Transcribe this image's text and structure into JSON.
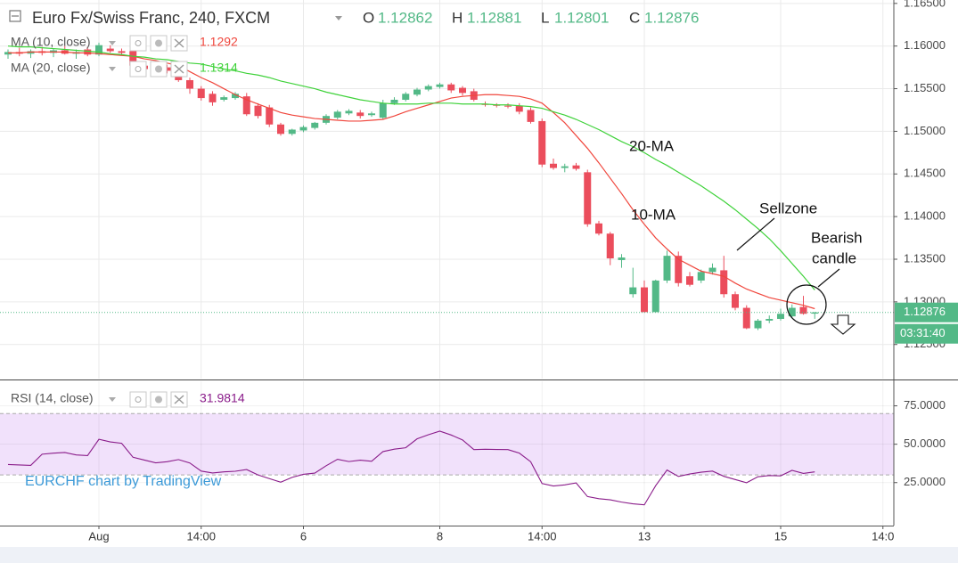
{
  "chart_data": [
    {
      "type": "candlestick",
      "title": "Euro Fx/Swiss Franc, 240, FXCM",
      "ohlc_legend": [
        {
          "label": "O",
          "value": 1.12862
        },
        {
          "label": "H",
          "value": 1.12881
        },
        {
          "label": "L",
          "value": 1.12801
        },
        {
          "label": "C",
          "value": 1.12876
        }
      ],
      "countdown": "03:31:40",
      "watermark": "EURCHF chart by TradingView",
      "annotations": [
        "20-MA",
        "10-MA",
        "Sellzone",
        "Bearish",
        "candle"
      ],
      "up_color": "#53b987",
      "down_color": "#eb4d5c",
      "grid": true,
      "ylim": [
        1.121,
        1.1654
      ],
      "yticks": [
        {
          "value": 1.165,
          "label": "1.16500"
        },
        {
          "value": 1.16,
          "label": "1.16000"
        },
        {
          "value": 1.155,
          "label": "1.15500"
        },
        {
          "value": 1.15,
          "label": "1.15000"
        },
        {
          "value": 1.145,
          "label": "1.14500"
        },
        {
          "value": 1.14,
          "label": "1.14000"
        },
        {
          "value": 1.135,
          "label": "1.13500"
        },
        {
          "value": 1.13,
          "label": "1.13000"
        },
        {
          "value": 1.125,
          "label": "1.12500"
        }
      ],
      "categories": [
        null,
        null,
        null,
        null,
        null,
        null,
        null,
        null,
        "Aug",
        null,
        null,
        null,
        null,
        null,
        null,
        null,
        null,
        "14:00",
        null,
        null,
        null,
        null,
        null,
        null,
        null,
        null,
        "6",
        null,
        null,
        null,
        null,
        null,
        null,
        null,
        null,
        null,
        null,
        null,
        "8",
        null,
        null,
        null,
        null,
        null,
        null,
        null,
        null,
        "14:00",
        null,
        null,
        null,
        null,
        null,
        null,
        null,
        null,
        "13",
        null,
        null,
        null,
        null,
        null,
        null,
        null,
        null,
        null,
        null,
        null,
        "15",
        null,
        null,
        null,
        null,
        null,
        null,
        null,
        null,
        "14:0"
      ],
      "open": [
        1.159,
        1.1593,
        1.1591,
        1.1594,
        1.1592,
        1.1595,
        1.1591,
        1.1596,
        1.159,
        1.1597,
        1.1594,
        1.1594,
        1.1577,
        1.1573,
        1.1575,
        1.157,
        1.156,
        1.155,
        1.1544,
        1.1537,
        1.1539,
        1.1541,
        1.153,
        1.1528,
        1.1508,
        1.1497,
        1.1501,
        1.1504,
        1.151,
        1.1516,
        1.1521,
        1.1522,
        1.1519,
        1.1516,
        1.1533,
        1.1537,
        1.1543,
        1.1549,
        1.1552,
        1.1555,
        1.1551,
        1.1547,
        1.1532,
        1.1531,
        1.153,
        1.153,
        1.1525,
        1.1512,
        1.1462,
        1.1457,
        1.146,
        1.1452,
        1.1392,
        1.138,
        1.1349,
        1.1309,
        1.1317,
        1.1288,
        1.1325,
        1.1354,
        1.133,
        1.1325,
        1.1335,
        1.1337,
        1.1309,
        1.1293,
        1.1269,
        1.1278,
        1.128,
        1.1283,
        1.1294,
        1.12862,
        null,
        null,
        null,
        null,
        null,
        null
      ],
      "high": [
        1.1596,
        1.1598,
        1.1596,
        1.1599,
        1.1597,
        1.16,
        1.1596,
        1.1599,
        1.1604,
        1.1601,
        1.1597,
        1.1597,
        1.158,
        1.1577,
        1.1578,
        1.1573,
        1.1563,
        1.1553,
        1.1547,
        1.1542,
        1.1546,
        1.1545,
        1.1533,
        1.1531,
        1.151,
        1.1503,
        1.1507,
        1.1511,
        1.152,
        1.1525,
        1.1526,
        1.1525,
        1.1523,
        1.1537,
        1.154,
        1.1546,
        1.1551,
        1.1555,
        1.1557,
        1.1557,
        1.1553,
        1.155,
        1.1535,
        1.1533,
        1.1533,
        1.1533,
        1.1528,
        1.1515,
        1.1468,
        1.1462,
        1.1463,
        1.1455,
        1.1395,
        1.1382,
        1.1356,
        1.134,
        1.1325,
        1.1326,
        1.136,
        1.1359,
        1.1335,
        1.1338,
        1.1345,
        1.1354,
        1.1312,
        1.1296,
        1.128,
        1.1284,
        1.1292,
        1.1297,
        1.1307,
        1.12881,
        null,
        null,
        null,
        null,
        null,
        null
      ],
      "low": [
        1.1585,
        1.1588,
        1.1586,
        1.1589,
        1.1587,
        1.159,
        1.1585,
        1.1588,
        1.1588,
        1.1592,
        1.159,
        1.1575,
        1.157,
        1.1569,
        1.1568,
        1.1558,
        1.1544,
        1.1536,
        1.153,
        1.1535,
        1.1537,
        1.1518,
        1.1515,
        1.1505,
        1.1495,
        1.1495,
        1.1499,
        1.1502,
        1.1508,
        1.1514,
        1.1519,
        1.1515,
        1.1517,
        1.1514,
        1.1531,
        1.1535,
        1.1541,
        1.1547,
        1.155,
        1.1545,
        1.1542,
        1.1535,
        1.1529,
        1.1528,
        1.1527,
        1.152,
        1.1509,
        1.1458,
        1.1455,
        1.1452,
        1.1454,
        1.1388,
        1.1378,
        1.1343,
        1.134,
        1.1305,
        1.1288,
        1.1288,
        1.1322,
        1.1318,
        1.1318,
        1.1322,
        1.1332,
        1.1305,
        1.129,
        1.1268,
        1.1267,
        1.1275,
        1.1278,
        1.1281,
        1.1285,
        1.12801,
        null,
        null,
        null,
        null,
        null,
        null
      ],
      "close": [
        1.1593,
        1.1591,
        1.1594,
        1.1592,
        1.1595,
        1.1591,
        1.1593,
        1.159,
        1.1601,
        1.1594,
        1.1592,
        1.1577,
        1.1573,
        1.1575,
        1.1571,
        1.156,
        1.155,
        1.1539,
        1.1534,
        1.154,
        1.1544,
        1.152,
        1.1518,
        1.1508,
        1.1497,
        1.1502,
        1.1505,
        1.151,
        1.1518,
        1.1523,
        1.1524,
        1.1518,
        1.1521,
        1.1533,
        1.1537,
        1.1544,
        1.1549,
        1.1553,
        1.1555,
        1.1548,
        1.1545,
        1.1537,
        1.1531,
        1.153,
        1.1529,
        1.1523,
        1.1511,
        1.1461,
        1.1457,
        1.1459,
        1.1456,
        1.1391,
        1.138,
        1.1351,
        1.1352,
        1.1317,
        1.1288,
        1.1325,
        1.1354,
        1.1322,
        1.132,
        1.1335,
        1.134,
        1.1309,
        1.1293,
        1.1269,
        1.1278,
        1.128,
        1.1286,
        1.1293,
        1.1286,
        1.12876,
        null,
        null,
        null,
        null,
        null,
        null
      ],
      "series": [
        {
          "name": "MA (10, close)",
          "color": "#f0463c",
          "last_value": 1.1292,
          "values": [
            1.1592,
            1.1592,
            1.1593,
            1.1593,
            1.1593,
            1.1593,
            1.1592,
            1.1592,
            1.1591,
            1.159,
            1.1589,
            1.1588,
            1.1585,
            1.1583,
            1.158,
            1.1577,
            1.157,
            1.1563,
            1.1557,
            1.155,
            1.1543,
            1.1537,
            1.1532,
            1.1527,
            1.1522,
            1.1519,
            1.1517,
            1.1515,
            1.1514,
            1.1513,
            1.1512,
            1.1512,
            1.1513,
            1.1514,
            1.1518,
            1.1523,
            1.1527,
            1.1531,
            1.1535,
            1.1539,
            1.1541,
            1.1542,
            1.1543,
            1.1543,
            1.1542,
            1.1541,
            1.1538,
            1.1533,
            1.1522,
            1.151,
            1.1495,
            1.148,
            1.1463,
            1.1445,
            1.1427,
            1.1408,
            1.1391,
            1.1375,
            1.1362,
            1.135,
            1.1343,
            1.1336,
            1.1333,
            1.133,
            1.1322,
            1.1315,
            1.131,
            1.1305,
            1.1302,
            1.1299,
            1.1296,
            1.1292,
            null,
            null,
            null,
            null,
            null,
            null
          ]
        },
        {
          "name": "MA (20, close)",
          "color": "#3fd23a",
          "last_value": 1.1314,
          "values": [
            1.16,
            1.1599,
            1.1599,
            1.1598,
            1.1597,
            1.1596,
            1.1595,
            1.1594,
            1.1593,
            1.1591,
            1.159,
            1.1588,
            1.1587,
            1.1585,
            1.1584,
            1.1582,
            1.158,
            1.1579,
            1.1576,
            1.1573,
            1.1571,
            1.1568,
            1.1566,
            1.1563,
            1.1559,
            1.1556,
            1.1553,
            1.155,
            1.1546,
            1.1543,
            1.154,
            1.1537,
            1.1535,
            1.1533,
            1.1532,
            1.1532,
            1.1532,
            1.1533,
            1.1533,
            1.1533,
            1.1532,
            1.1532,
            1.1532,
            1.1531,
            1.1531,
            1.153,
            1.1529,
            1.1527,
            1.1523,
            1.1519,
            1.1514,
            1.1508,
            1.1502,
            1.1495,
            1.1488,
            1.1482,
            1.1475,
            1.1467,
            1.146,
            1.1452,
            1.1444,
            1.1436,
            1.1427,
            1.1418,
            1.1408,
            1.1397,
            1.1386,
            1.1374,
            1.136,
            1.1345,
            1.133,
            1.1314,
            null,
            null,
            null,
            null,
            null,
            null
          ]
        }
      ]
    },
    {
      "type": "line",
      "grid": true,
      "ylim": [
        -3,
        91
      ],
      "yticks": [
        {
          "value": 75,
          "label": "75.0000"
        },
        {
          "value": 50,
          "label": "50.0000"
        },
        {
          "value": 25,
          "label": "25.0000"
        }
      ],
      "band": [
        30,
        70
      ],
      "band_color": "#f1e1fb",
      "series": [
        {
          "name": "RSI (14, close)",
          "color": "#8a1c8a",
          "last_value": 31.9814,
          "values": [
            36.8,
            36.5,
            36.2,
            43.5,
            44.2,
            44.6,
            43.0,
            42.6,
            53.2,
            51.5,
            50.6,
            41.5,
            39.7,
            37.9,
            38.6,
            40.0,
            37.8,
            32.5,
            31.3,
            32.0,
            32.4,
            33.5,
            30.0,
            27.6,
            25.3,
            28.4,
            30.4,
            31.2,
            36.0,
            40.2,
            38.7,
            39.6,
            38.9,
            45.2,
            46.8,
            47.7,
            53.5,
            56.2,
            58.5,
            56.0,
            52.8,
            46.5,
            46.7,
            46.6,
            46.5,
            44.2,
            38.6,
            24.4,
            22.8,
            23.5,
            24.8,
            15.9,
            14.5,
            13.8,
            12.3,
            11.2,
            10.5,
            23.0,
            33.2,
            29.0,
            30.6,
            31.8,
            32.5,
            29.1,
            27.0,
            24.9,
            28.8,
            29.6,
            29.4,
            33.0,
            31.0,
            31.9814,
            null,
            null,
            null,
            null,
            null,
            null
          ]
        }
      ]
    }
  ]
}
